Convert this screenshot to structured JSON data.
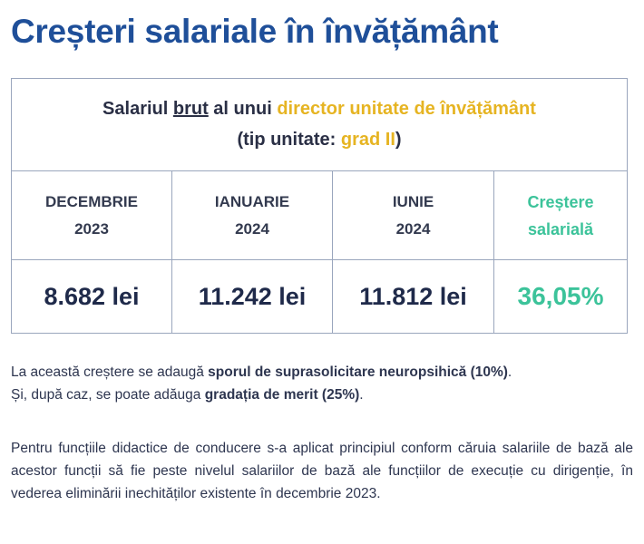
{
  "title": "Creșteri salariale în învățământ",
  "table": {
    "heading": {
      "part1": "Salariul ",
      "brut": "brut",
      "part2": " al unui ",
      "role": "director unitate de învățământ",
      "line2_a": "(tip unitate: ",
      "line2_grade": "grad II",
      "line2_b": ")"
    },
    "columns": [
      {
        "month": "DECEMBRIE",
        "year": "2023",
        "value": "8.682 lei"
      },
      {
        "month": "IANUARIE",
        "year": "2024",
        "value": "11.242 lei"
      },
      {
        "month": "IUNIE",
        "year": "2024",
        "value": "11.812 lei"
      }
    ],
    "growth": {
      "label1": "Creștere",
      "label2": "salarială",
      "value": "36,05%"
    }
  },
  "notes": {
    "p1_a": "La această creștere se adaugă ",
    "p1_b": "sporul de suprasolicitare neuropsihică (10%)",
    "p1_c": ".",
    "p1_d": "Și, după caz, se poate adăuga ",
    "p1_e": "gradația de merit (25%)",
    "p1_f": ".",
    "p2": "Pentru funcțiile didactice de conducere s-a aplicat principiul conform căruia salariile de bază ale acestor funcții să fie peste nivelul salariilor de bază ale funcțiilor de execuție cu dirigenție, în vederea eliminării inechităților existente în decembrie 2023."
  },
  "colors": {
    "title": "#1f4f99",
    "accent_yellow": "#e6b422",
    "accent_green": "#3cc39a"
  }
}
